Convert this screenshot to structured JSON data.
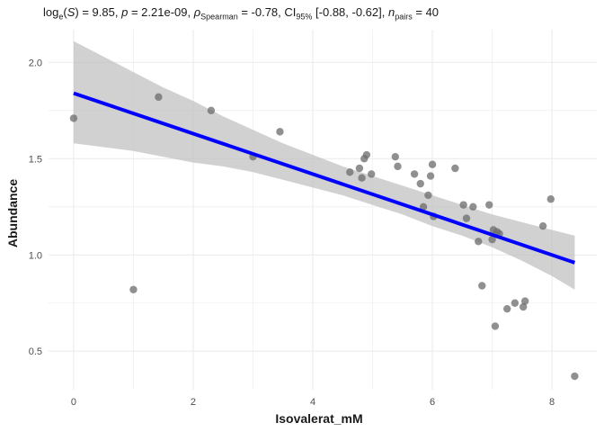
{
  "header": {
    "log_label": "log",
    "log_base": "e",
    "log_var": "S",
    "log_value": "= 9.85,",
    "p_label": "p",
    "p_value": "= 2.21e-09,",
    "rho_label": "ρ",
    "rho_sub": "Spearman",
    "rho_value": "= -0.78,",
    "ci_label": "CI",
    "ci_sub": "95%",
    "ci_value": "[-0.88, -0.62],",
    "n_label": "n",
    "n_sub": "pairs",
    "n_value": "= 40"
  },
  "colors": {
    "points": "#6b6b6b",
    "fit_line": "#0000ff",
    "ci_band": "#bdbdbd",
    "grid": "#ebebeb"
  },
  "chart_data": {
    "type": "scatter",
    "xlabel": "Isovalerat_mM",
    "ylabel": "Abundance",
    "xlim": [
      -0.42,
      8.75
    ],
    "ylim": [
      0.3,
      2.17
    ],
    "x_ticks": [
      0,
      2,
      4,
      6,
      8
    ],
    "x_tick_labels": [
      "0",
      "2",
      "4",
      "6",
      "8"
    ],
    "y_ticks": [
      0.5,
      1.0,
      1.5,
      2.0
    ],
    "y_tick_labels": [
      "0.5",
      "1.0",
      "1.5",
      "2.0"
    ],
    "grid": true,
    "points": [
      {
        "x": 0.0,
        "y": 1.71
      },
      {
        "x": 1.0,
        "y": 0.82
      },
      {
        "x": 1.42,
        "y": 1.82
      },
      {
        "x": 2.3,
        "y": 1.75
      },
      {
        "x": 3.0,
        "y": 1.51
      },
      {
        "x": 3.45,
        "y": 1.64
      },
      {
        "x": 4.62,
        "y": 1.43
      },
      {
        "x": 4.78,
        "y": 1.45
      },
      {
        "x": 4.82,
        "y": 1.4
      },
      {
        "x": 4.86,
        "y": 1.5
      },
      {
        "x": 4.9,
        "y": 1.52
      },
      {
        "x": 4.98,
        "y": 1.42
      },
      {
        "x": 5.38,
        "y": 1.51
      },
      {
        "x": 5.42,
        "y": 1.46
      },
      {
        "x": 5.7,
        "y": 1.42
      },
      {
        "x": 5.8,
        "y": 1.37
      },
      {
        "x": 5.85,
        "y": 1.25
      },
      {
        "x": 5.93,
        "y": 1.31
      },
      {
        "x": 5.97,
        "y": 1.41
      },
      {
        "x": 6.0,
        "y": 1.47
      },
      {
        "x": 6.02,
        "y": 1.2
      },
      {
        "x": 6.38,
        "y": 1.45
      },
      {
        "x": 6.52,
        "y": 1.26
      },
      {
        "x": 6.57,
        "y": 1.19
      },
      {
        "x": 6.68,
        "y": 1.25
      },
      {
        "x": 6.77,
        "y": 1.07
      },
      {
        "x": 6.83,
        "y": 0.84
      },
      {
        "x": 6.95,
        "y": 1.26
      },
      {
        "x": 7.0,
        "y": 1.08
      },
      {
        "x": 7.02,
        "y": 1.13
      },
      {
        "x": 7.05,
        "y": 0.63
      },
      {
        "x": 7.08,
        "y": 1.12
      },
      {
        "x": 7.12,
        "y": 1.11
      },
      {
        "x": 7.25,
        "y": 0.72
      },
      {
        "x": 7.38,
        "y": 0.75
      },
      {
        "x": 7.52,
        "y": 0.73
      },
      {
        "x": 7.55,
        "y": 0.76
      },
      {
        "x": 7.85,
        "y": 1.15
      },
      {
        "x": 7.98,
        "y": 1.29
      },
      {
        "x": 8.38,
        "y": 0.37
      }
    ],
    "fit": {
      "x": [
        0.0,
        8.38
      ],
      "y": [
        1.84,
        0.96
      ]
    },
    "ci_band": {
      "x": [
        0.0,
        0.5,
        1.0,
        1.5,
        2.0,
        2.5,
        3.0,
        3.5,
        4.0,
        4.5,
        5.0,
        5.5,
        6.0,
        6.5,
        7.0,
        7.5,
        8.0,
        8.38
      ],
      "upper": [
        2.11,
        2.03,
        1.95,
        1.87,
        1.8,
        1.72,
        1.65,
        1.58,
        1.52,
        1.46,
        1.41,
        1.36,
        1.31,
        1.26,
        1.21,
        1.17,
        1.13,
        1.1
      ],
      "lower": [
        1.58,
        1.56,
        1.54,
        1.51,
        1.48,
        1.46,
        1.43,
        1.39,
        1.35,
        1.31,
        1.26,
        1.21,
        1.15,
        1.1,
        1.04,
        0.97,
        0.89,
        0.82
      ]
    }
  }
}
